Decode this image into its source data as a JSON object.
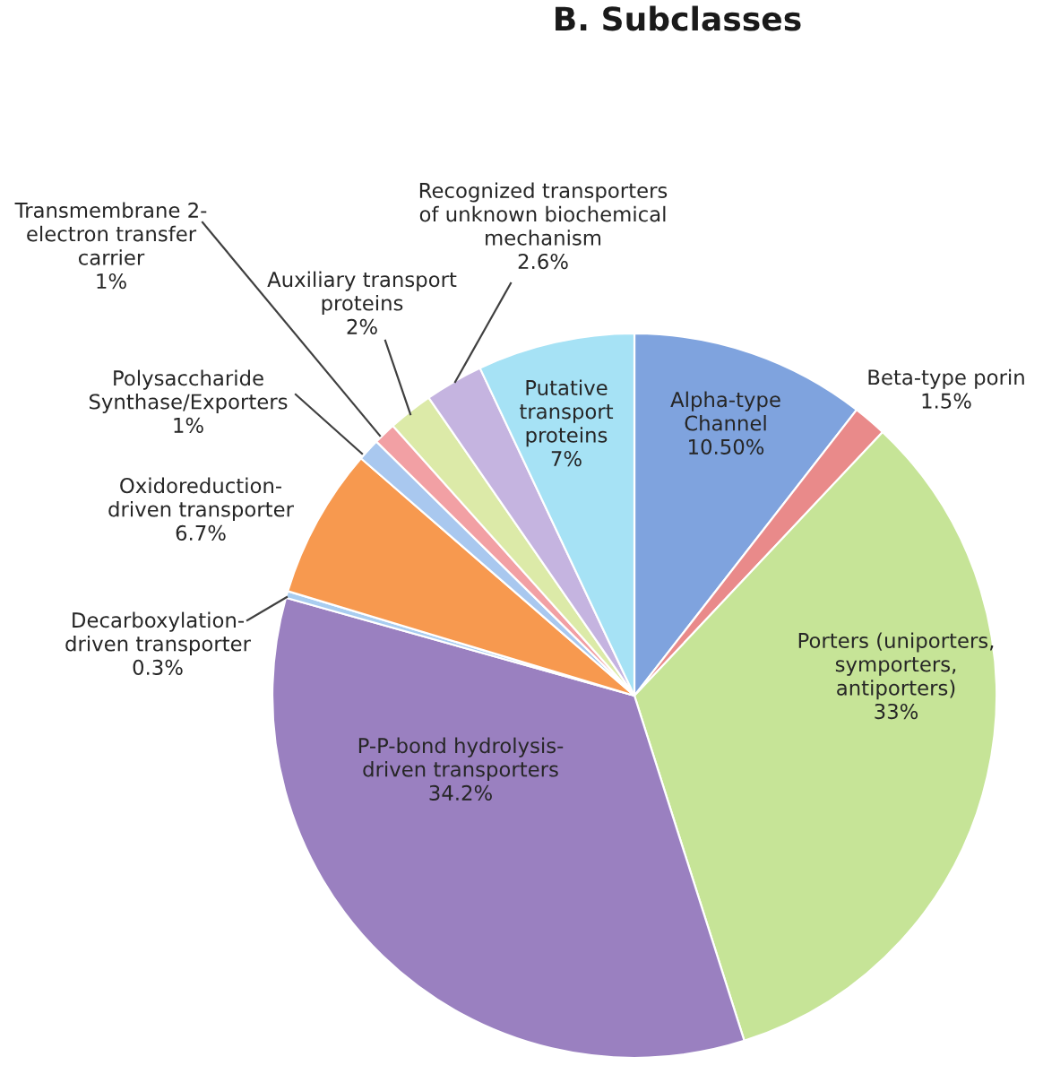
{
  "chart_data": {
    "type": "pie",
    "title": "B. Subclasses",
    "categories": [
      "Alpha-type\nChannel",
      "Beta-type porin",
      "Porters (uniporters,\nsymporters,\nantiporters)",
      "P-P-bond hydrolysis-\ndriven transporters",
      "Decarboxylation-\ndriven transporter",
      "Oxidoreduction-\ndriven transporter",
      "Polysaccharide\nSynthase/Exporters",
      "Transmembrane 2-\nelectron transfer\ncarrier",
      "Auxiliary transport\nproteins",
      "Recognized transporters\nof unknown biochemical\nmechanism",
      "Putative\ntransport\nproteins"
    ],
    "values": [
      10.5,
      1.5,
      33,
      34.2,
      0.3,
      6.7,
      1,
      1,
      2,
      2.6,
      7
    ],
    "value_labels": [
      "10.50%",
      "1.5%",
      "33%",
      "34.2%",
      "0.3%",
      "6.7%",
      "1%",
      "1%",
      "2%",
      "2.6%",
      "7%"
    ],
    "colors": [
      "#7fa3de",
      "#e98a8a",
      "#c6e497",
      "#9a80c0",
      "#a9cdf0",
      "#f7994f",
      "#a9c8ef",
      "#f2a0a4",
      "#dceaa8",
      "#c5b4e0",
      "#a6e2f5"
    ]
  }
}
